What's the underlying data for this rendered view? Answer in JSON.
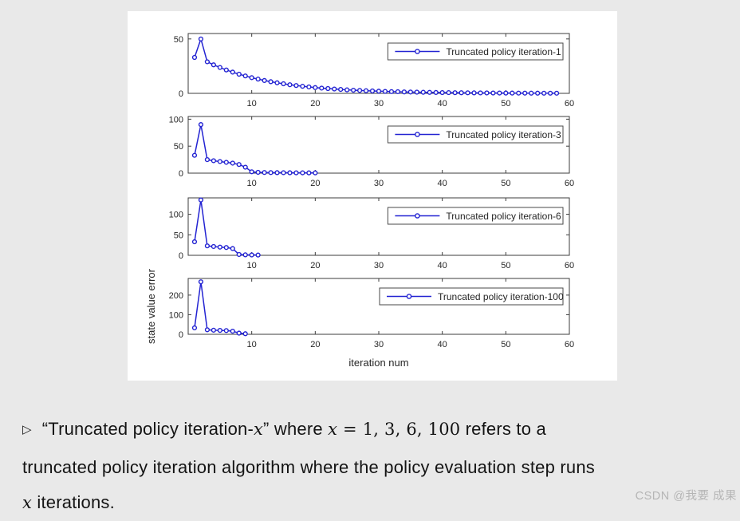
{
  "figure": {
    "line_color": "#2323d2",
    "frame_color": "#3d3d3d",
    "legend_border": "#4a4a4a",
    "tick_label_color": "#262626",
    "panel_background": "#ffffff",
    "page_background": "#e9e9e9"
  },
  "chart_data": [
    {
      "type": "line",
      "legend": "Truncated policy iteration-1",
      "legend_position": "top-right",
      "grid": false,
      "xlim": [
        0,
        60
      ],
      "ylim": [
        0,
        55
      ],
      "xticks": [
        10,
        20,
        30,
        40,
        50,
        60
      ],
      "yticks": [
        0,
        50
      ],
      "x": [
        1,
        2,
        3,
        4,
        5,
        6,
        7,
        8,
        9,
        10,
        11,
        12,
        13,
        14,
        15,
        16,
        17,
        18,
        19,
        20,
        21,
        22,
        23,
        24,
        25,
        26,
        27,
        28,
        29,
        30,
        31,
        32,
        33,
        34,
        35,
        36,
        37,
        38,
        39,
        40,
        41,
        42,
        43,
        44,
        45,
        46,
        47,
        48,
        49,
        50,
        51,
        52,
        53,
        54,
        55,
        56,
        57,
        58
      ],
      "values": [
        33,
        50,
        29,
        26.2,
        23.8,
        21.5,
        19.5,
        17.6,
        16,
        14.4,
        13.1,
        11.8,
        10.7,
        9.7,
        8.8,
        7.9,
        7.2,
        6.5,
        5.9,
        5.3,
        4.8,
        4.4,
        4,
        3.6,
        3.2,
        2.9,
        2.7,
        2.4,
        2.2,
        2,
        1.8,
        1.6,
        1.5,
        1.3,
        1.2,
        1.1,
        1,
        0.9,
        0.8,
        0.7,
        0.67,
        0.6,
        0.55,
        0.5,
        0.45,
        0.4,
        0.37,
        0.33,
        0.3,
        0.27,
        0.25,
        0.22,
        0.2,
        0.18,
        0.17,
        0.15,
        0.14,
        0.12
      ]
    },
    {
      "type": "line",
      "legend": "Truncated policy iteration-3",
      "legend_position": "top-right",
      "grid": false,
      "xlim": [
        0,
        60
      ],
      "ylim": [
        0,
        105
      ],
      "xticks": [
        10,
        20,
        30,
        40,
        50,
        60
      ],
      "yticks": [
        0,
        50,
        100
      ],
      "x": [
        1,
        2,
        3,
        4,
        5,
        6,
        7,
        8,
        9,
        10,
        11,
        12,
        13,
        14,
        15,
        16,
        17,
        18,
        19,
        20
      ],
      "values": [
        33,
        90,
        25,
        23,
        21.5,
        20,
        18.5,
        16,
        11,
        2.5,
        1.5,
        1.2,
        1,
        0.9,
        0.8,
        0.7,
        0.6,
        0.6,
        0.5,
        0.5
      ]
    },
    {
      "type": "line",
      "legend": "Truncated policy iteration-6",
      "legend_position": "top-right",
      "grid": false,
      "xlim": [
        0,
        60
      ],
      "ylim": [
        0,
        140
      ],
      "xticks": [
        10,
        20,
        30,
        40,
        50,
        60
      ],
      "yticks": [
        0,
        50,
        100
      ],
      "x": [
        1,
        2,
        3,
        4,
        5,
        6,
        7,
        8,
        9,
        10,
        11
      ],
      "values": [
        33,
        135,
        23,
        21.5,
        20,
        19,
        16.5,
        2,
        1.2,
        0.9,
        0.7
      ]
    },
    {
      "type": "line",
      "legend": "Truncated policy iteration-100",
      "legend_position": "top-right",
      "grid": false,
      "xlim": [
        0,
        60
      ],
      "ylim": [
        0,
        285
      ],
      "xticks": [
        10,
        20,
        30,
        40,
        50,
        60
      ],
      "yticks": [
        0,
        100,
        200
      ],
      "x": [
        1,
        2,
        3,
        4,
        5,
        6,
        7,
        8,
        9
      ],
      "values": [
        33,
        268,
        23,
        21,
        20,
        19,
        16,
        6,
        3
      ],
      "xlabel": "iteration num",
      "ylabel": "state value error"
    }
  ],
  "caption": {
    "bullet": "▷",
    "line1": [
      {
        "t": "“Truncated policy iteration-",
        "s": "sans"
      },
      {
        "t": "x",
        "s": "math"
      },
      {
        "t": "”  where ",
        "s": "sans"
      },
      {
        "t": "x",
        "s": "math"
      },
      {
        "t": " = 1, 3, 6, 100",
        "s": "rom"
      },
      {
        "t": " refers to a",
        "s": "sans"
      }
    ],
    "line2": [
      {
        "t": "truncated policy iteration algorithm where the policy evaluation step runs",
        "s": "sans"
      }
    ],
    "line3": [
      {
        "t": "x",
        "s": "math"
      },
      {
        "t": " iterations.",
        "s": "sans"
      }
    ]
  },
  "watermark": {
    "text": "CSDN @我要 成果"
  }
}
